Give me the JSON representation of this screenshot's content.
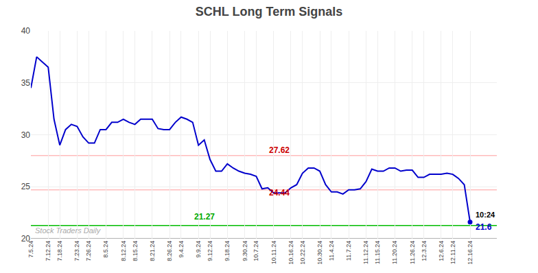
{
  "chart_data": {
    "type": "line",
    "title": "SCHL Long Term Signals",
    "color": "#0000cc",
    "categories": [
      "7.5.24",
      null,
      null,
      "7.12.24",
      null,
      "7.18.24",
      null,
      null,
      "7.23.24",
      null,
      "7.26.24",
      null,
      null,
      "8.5.24",
      null,
      null,
      "8.12.24",
      null,
      "8.15.24",
      null,
      null,
      "8.21.24",
      null,
      null,
      "8.26.24",
      null,
      "9.4.24",
      null,
      null,
      "9.9.24",
      null,
      "9.12.24",
      null,
      null,
      "9.18.24",
      null,
      null,
      "9.30.24",
      null,
      "10.7.24",
      null,
      null,
      "10.11.24",
      null,
      null,
      "10.16.24",
      null,
      "10.22.24",
      null,
      null,
      "10.30.24",
      null,
      "11.4.24",
      null,
      null,
      "11.7.24",
      null,
      null,
      "11.12.24",
      null,
      "11.15.24",
      null,
      null,
      "11.20.24",
      null,
      null,
      "11.26.24",
      null,
      "12.3.24",
      null,
      null,
      "12.6.24",
      null,
      "12.11.24",
      null,
      null,
      "12.16.24"
    ],
    "values": [
      34.5,
      37.5,
      37.0,
      36.5,
      31.5,
      29.0,
      30.5,
      31.0,
      30.8,
      29.8,
      29.2,
      29.2,
      30.5,
      30.5,
      31.2,
      31.2,
      31.5,
      31.2,
      31.0,
      31.5,
      31.5,
      31.5,
      30.6,
      30.5,
      30.5,
      31.2,
      31.7,
      31.5,
      31.2,
      29.0,
      29.5,
      27.62,
      26.5,
      26.5,
      27.2,
      26.8,
      26.5,
      26.3,
      26.2,
      26.0,
      24.8,
      24.9,
      24.4,
      24.4,
      24.4,
      24.9,
      25.2,
      26.3,
      26.8,
      26.8,
      26.5,
      25.2,
      24.5,
      24.5,
      24.3,
      24.7,
      24.7,
      24.8,
      25.5,
      26.7,
      26.5,
      26.5,
      26.8,
      26.8,
      26.5,
      26.6,
      26.6,
      25.9,
      25.9,
      26.2,
      26.2,
      26.2,
      26.3,
      26.2,
      25.8,
      25.2,
      21.6
    ],
    "ylim": [
      20,
      40
    ],
    "yticks": [
      20,
      25,
      30,
      35,
      40
    ],
    "grid": true,
    "hlines": [
      {
        "y": 28.0,
        "color": "#ffbbbb"
      },
      {
        "y": 24.7,
        "color": "#ffbbbb"
      },
      {
        "y": 21.27,
        "color": "#00bb00"
      },
      {
        "y": 20.0,
        "color": "#999999"
      }
    ],
    "annotations": [
      {
        "text": "27.62",
        "x": 41,
        "y": 27.9,
        "color": "#cc0000"
      },
      {
        "text": "24.44",
        "x": 41,
        "y": 23.85,
        "color": "#cc0000"
      },
      {
        "text": "21.27",
        "x": 28,
        "y": 21.55,
        "color": "#00aa00"
      }
    ],
    "end_point": {
      "x": 76,
      "y": 21.6,
      "time": "10:24",
      "label": "21.6",
      "time_color": "#000000"
    },
    "watermark": {
      "text": "Stock Traders Daily",
      "x": 0.5,
      "y": 20.25,
      "color": "#aaaaaa"
    }
  }
}
